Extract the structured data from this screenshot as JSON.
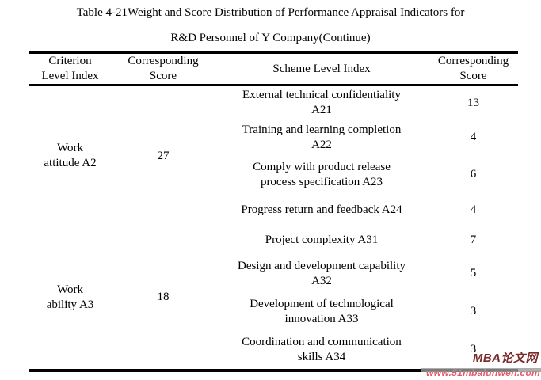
{
  "title": {
    "line1": "Table 4-21Weight and Score Distribution of Performance Appraisal Indicators for",
    "line2": "R&D Personnel of Y Company(Continue)"
  },
  "table": {
    "headers": [
      {
        "line1": "Criterion",
        "line2": "Level Index"
      },
      {
        "line1": "Corresponding",
        "line2": "Score"
      },
      {
        "line1": "Scheme Level Index",
        "line2": ""
      },
      {
        "line1": "Corresponding",
        "line2": "Score"
      }
    ],
    "groups": [
      {
        "criterion": {
          "line1": "Work",
          "line2": "attitude A2"
        },
        "score": "27",
        "rows": [
          {
            "line1": "External technical confidentiality",
            "line2": "A21",
            "score": "13"
          },
          {
            "line1": "Training and learning completion",
            "line2": "A22",
            "score": "4"
          },
          {
            "line1": "Comply with product release",
            "line2": "process specification A23",
            "score": "6"
          },
          {
            "line1": "Progress return and feedback A24",
            "line2": "",
            "score": "4"
          }
        ]
      },
      {
        "criterion": {
          "line1": "Work",
          "line2": "ability A3"
        },
        "score": "18",
        "rows": [
          {
            "line1": "Project complexity A31",
            "line2": "",
            "score": "7"
          },
          {
            "line1": "Design and development capability",
            "line2": "A32",
            "score": "5"
          },
          {
            "line1": "Development of technological",
            "line2": "innovation A33",
            "score": "3"
          },
          {
            "line1": "Coordination and communication",
            "line2": "skills A34",
            "score": "3"
          }
        ]
      }
    ]
  },
  "watermark": {
    "brand": "MBA论文网",
    "url": "www.51mbalunwen.com",
    "brand_color": "#7b2a2a",
    "url_color": "#e4596a",
    "stripe_color": "#9a9a9a"
  }
}
